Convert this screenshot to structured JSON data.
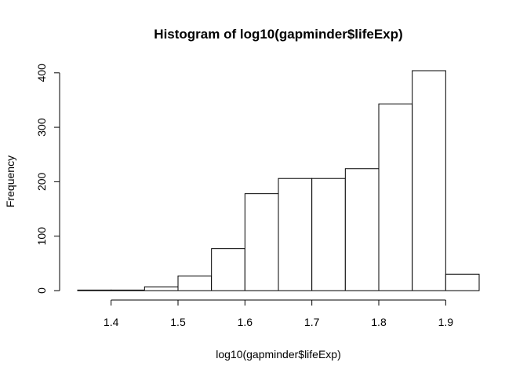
{
  "chart_data": {
    "type": "bar",
    "title": "Histogram of log10(gapminder$lifeExp)",
    "xlabel": "log10(gapminder$lifeExp)",
    "ylabel": "Frequency",
    "bin_edges": [
      1.35,
      1.4,
      1.45,
      1.5,
      1.55,
      1.6,
      1.65,
      1.7,
      1.75,
      1.8,
      1.85,
      1.9,
      1.95
    ],
    "values": [
      1,
      1,
      7,
      27,
      77,
      178,
      206,
      206,
      224,
      343,
      404,
      30
    ],
    "xlim": [
      1.35,
      1.95
    ],
    "ylim": [
      0,
      404
    ],
    "x_ticks": [
      "1.4",
      "1.5",
      "1.6",
      "1.7",
      "1.8",
      "1.9"
    ],
    "y_ticks": [
      "0",
      "100",
      "200",
      "300",
      "400"
    ],
    "grid": false,
    "legend": "none"
  }
}
